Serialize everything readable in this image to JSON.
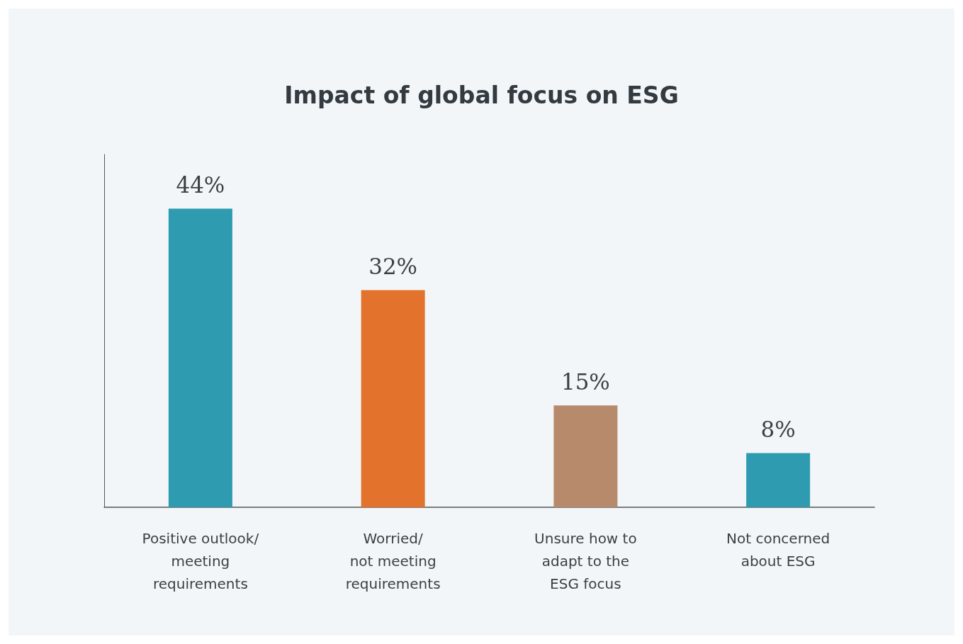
{
  "chart_data": {
    "type": "bar",
    "title": "Impact of global focus on ESG",
    "categories": [
      "Positive outlook/\nmeeting\nrequirements",
      "Worried/\nnot meeting\nrequirements",
      "Unsure how to\nadapt to the\nESG focus",
      "Not concerned\nabout ESG"
    ],
    "values": [
      44,
      32,
      15,
      8
    ],
    "colors": [
      "#2e9bb1",
      "#e3732c",
      "#b88a6c",
      "#2e9bb1"
    ],
    "value_labels": [
      "44%",
      "32%",
      "15%",
      "8%"
    ],
    "ylim": [
      0,
      52
    ],
    "tick_labels": "x",
    "grid": false
  }
}
